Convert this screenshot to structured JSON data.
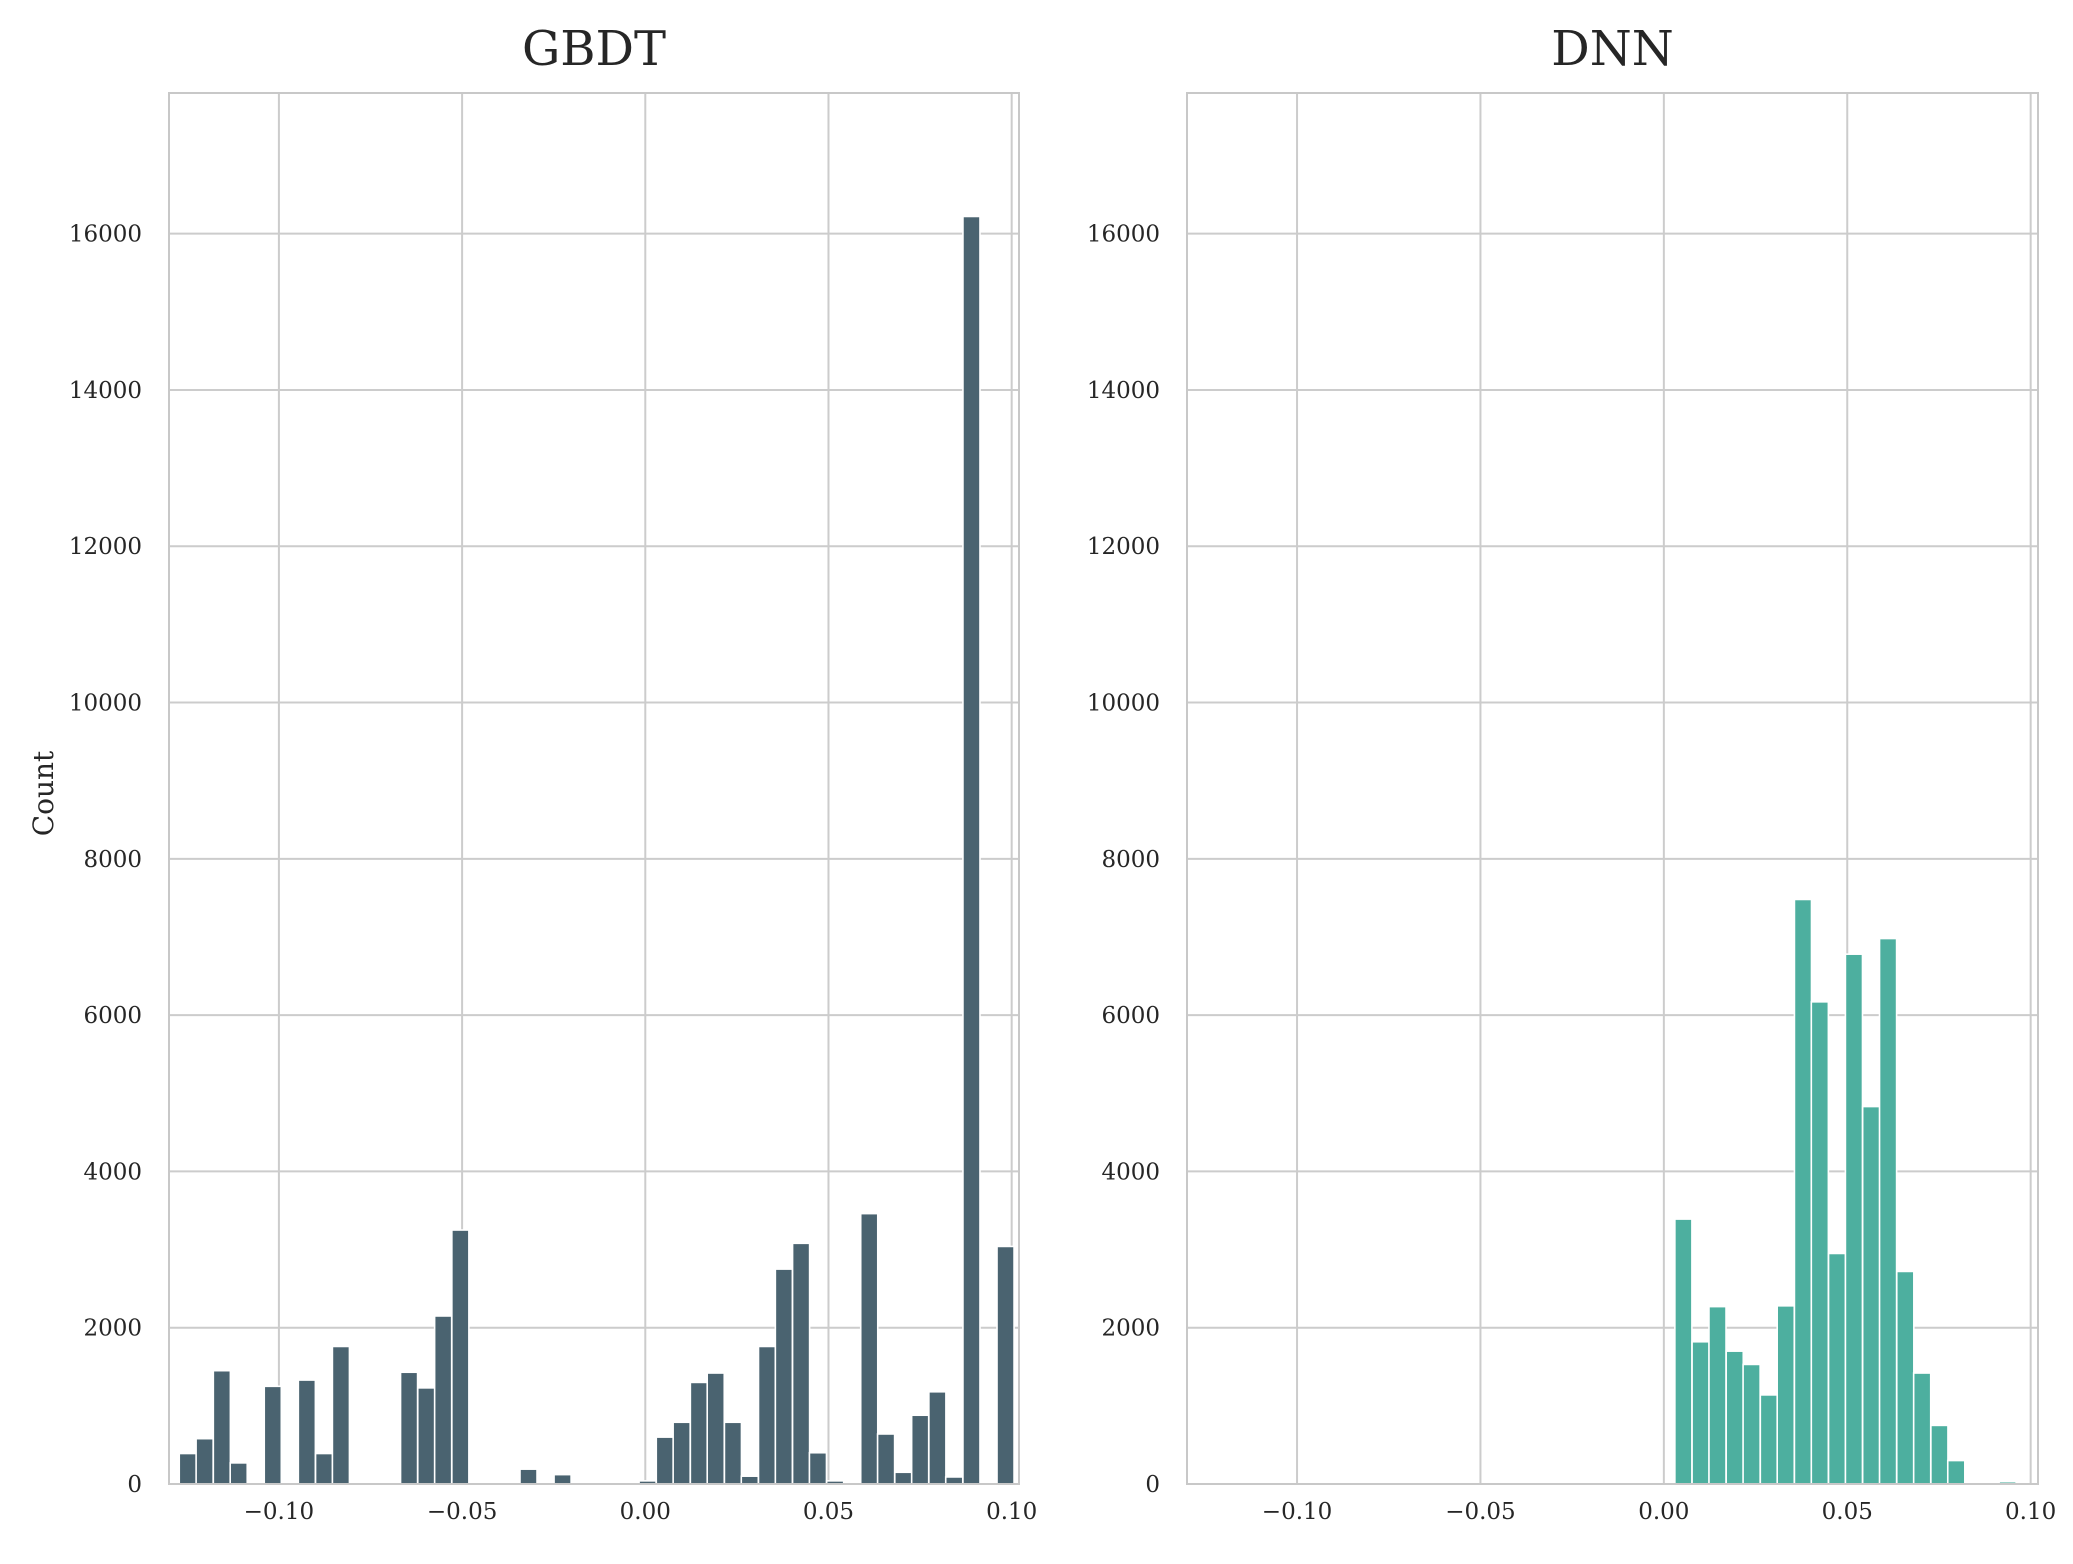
{
  "chart_data": [
    {
      "type": "bar",
      "title": "GBDT",
      "xlabel": "",
      "ylabel": "Count",
      "xlim": [
        -0.13,
        0.102
      ],
      "ylim": [
        0,
        17800
      ],
      "xticks": [
        -0.1,
        -0.05,
        0.0,
        0.05,
        0.1
      ],
      "xtick_labels": [
        "−0.10",
        "−0.05",
        "0.00",
        "0.05",
        "0.10"
      ],
      "yticks": [
        0,
        2000,
        4000,
        6000,
        8000,
        10000,
        12000,
        14000,
        16000
      ],
      "ytick_labels": [
        "0",
        "2000",
        "4000",
        "6000",
        "8000",
        "10000",
        "12000",
        "14000",
        "16000"
      ],
      "grid": true,
      "bar_color": "#4a6370",
      "bin_width": 0.00465,
      "bins_start": [
        -0.1272,
        -0.1226,
        -0.1179,
        -0.1133,
        -0.1086,
        -0.104,
        -0.0993,
        -0.0947,
        -0.09,
        -0.0854,
        -0.0807,
        -0.0761,
        -0.0714,
        -0.0668,
        -0.0621,
        -0.0575,
        -0.0528,
        -0.0482,
        -0.0435,
        -0.0389,
        -0.0342,
        -0.0296,
        -0.0249,
        -0.0203,
        -0.0156,
        -0.011,
        -0.0063,
        -0.0017,
        0.003,
        0.0076,
        0.0123,
        0.0169,
        0.0216,
        0.0262,
        0.0309,
        0.0355,
        0.0402,
        0.0448,
        0.0495,
        0.0541,
        0.0588,
        0.0634,
        0.0681,
        0.0727,
        0.0774,
        0.082,
        0.0867,
        0.0913,
        0.096
      ],
      "counts": [
        390,
        580,
        1450,
        270,
        0,
        1250,
        0,
        1330,
        390,
        1760,
        0,
        0,
        0,
        1430,
        1230,
        2150,
        3250,
        0,
        0,
        0,
        190,
        0,
        120,
        0,
        0,
        0,
        0,
        40,
        600,
        790,
        1300,
        1420,
        790,
        100,
        1760,
        2750,
        3080,
        400,
        40,
        0,
        3460,
        640,
        150,
        880,
        1180,
        90,
        16220,
        0,
        3040
      ]
    },
    {
      "type": "bar",
      "title": "DNN",
      "xlabel": "",
      "ylabel": "",
      "xlim": [
        -0.13,
        0.102
      ],
      "ylim": [
        0,
        17800
      ],
      "xticks": [
        -0.1,
        -0.05,
        0.0,
        0.05,
        0.1
      ],
      "xtick_labels": [
        "−0.10",
        "−0.05",
        "0.00",
        "0.05",
        "0.10"
      ],
      "yticks": [
        0,
        2000,
        4000,
        6000,
        8000,
        10000,
        12000,
        14000,
        16000
      ],
      "ytick_labels": [
        "0",
        "2000",
        "4000",
        "6000",
        "8000",
        "10000",
        "12000",
        "14000",
        "16000"
      ],
      "grid": true,
      "bar_color": "#4daf9f",
      "bin_width": 0.00465,
      "bins_start": [
        0.003,
        0.0077,
        0.0123,
        0.017,
        0.0216,
        0.0263,
        0.0309,
        0.0356,
        0.0402,
        0.0449,
        0.0495,
        0.0542,
        0.0588,
        0.0635,
        0.0681,
        0.0728,
        0.0774,
        0.0821,
        0.0867,
        0.0914
      ],
      "counts": [
        3390,
        1820,
        2270,
        1700,
        1530,
        1140,
        2280,
        7480,
        6170,
        2950,
        6780,
        4830,
        6980,
        2720,
        1420,
        750,
        300,
        0,
        0,
        30
      ]
    }
  ]
}
